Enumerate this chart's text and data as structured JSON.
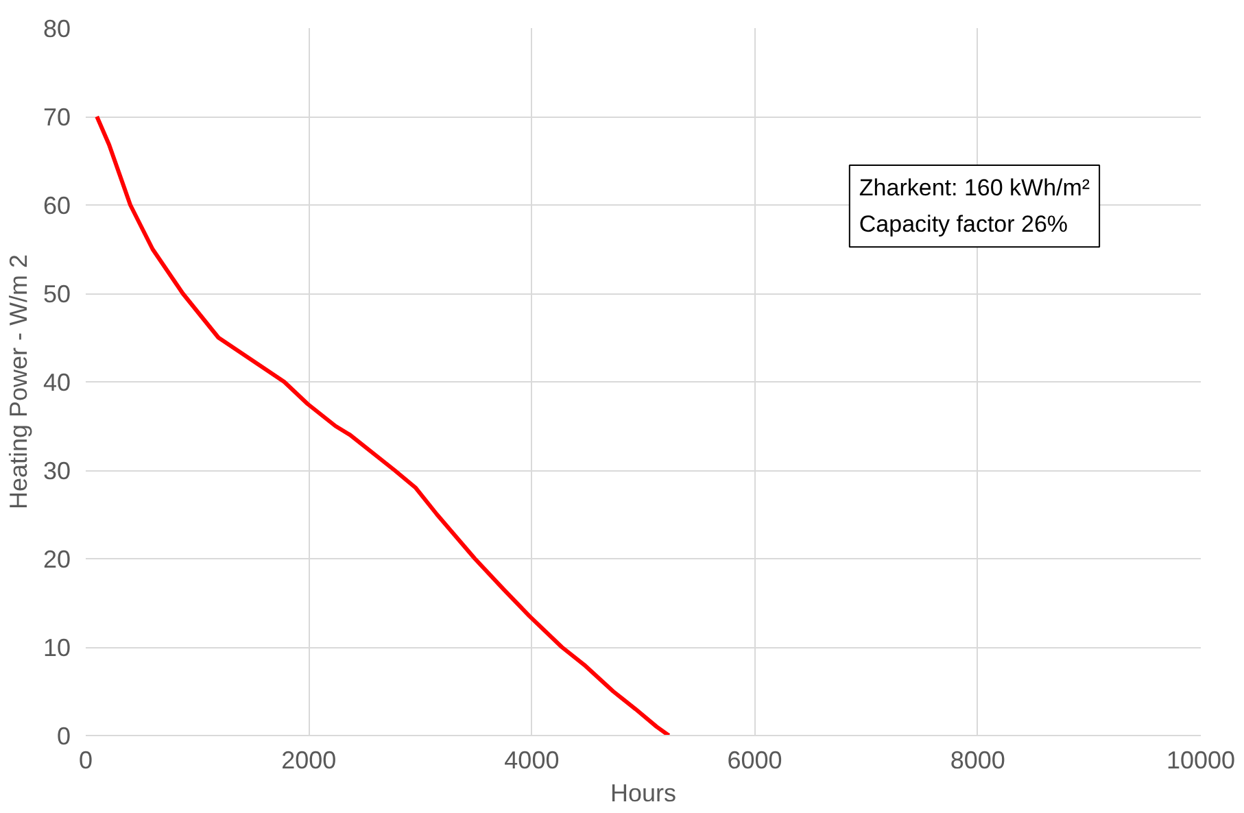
{
  "chart_data": {
    "type": "line",
    "xlabel": "Hours",
    "ylabel": "Heating Power - W/m 2",
    "x": [
      100,
      210,
      400,
      600,
      870,
      1190,
      1780,
      1990,
      2240,
      2370,
      2770,
      2960,
      3150,
      3490,
      3750,
      3980,
      4270,
      4470,
      4730,
      4930,
      5120,
      5230
    ],
    "series": [
      {
        "color": "#ff0000",
        "values": [
          70,
          66.8,
          60,
          55,
          50,
          45,
          40,
          37.5,
          35,
          34,
          30,
          28,
          25,
          20,
          16.5,
          13.5,
          10,
          8,
          5,
          3,
          1,
          0
        ]
      }
    ],
    "xlim": [
      0,
      10000
    ],
    "xticks": [
      0,
      2000,
      4000,
      6000,
      8000,
      10000
    ],
    "ylim": [
      0,
      80
    ],
    "yticks": [
      0,
      10,
      20,
      30,
      40,
      50,
      60,
      70,
      80
    ],
    "grid": true,
    "marker": "none",
    "line_style": "solid",
    "annotations": [
      "Zharkent: 160 kWh/m²",
      "Capacity factor 26%"
    ]
  }
}
